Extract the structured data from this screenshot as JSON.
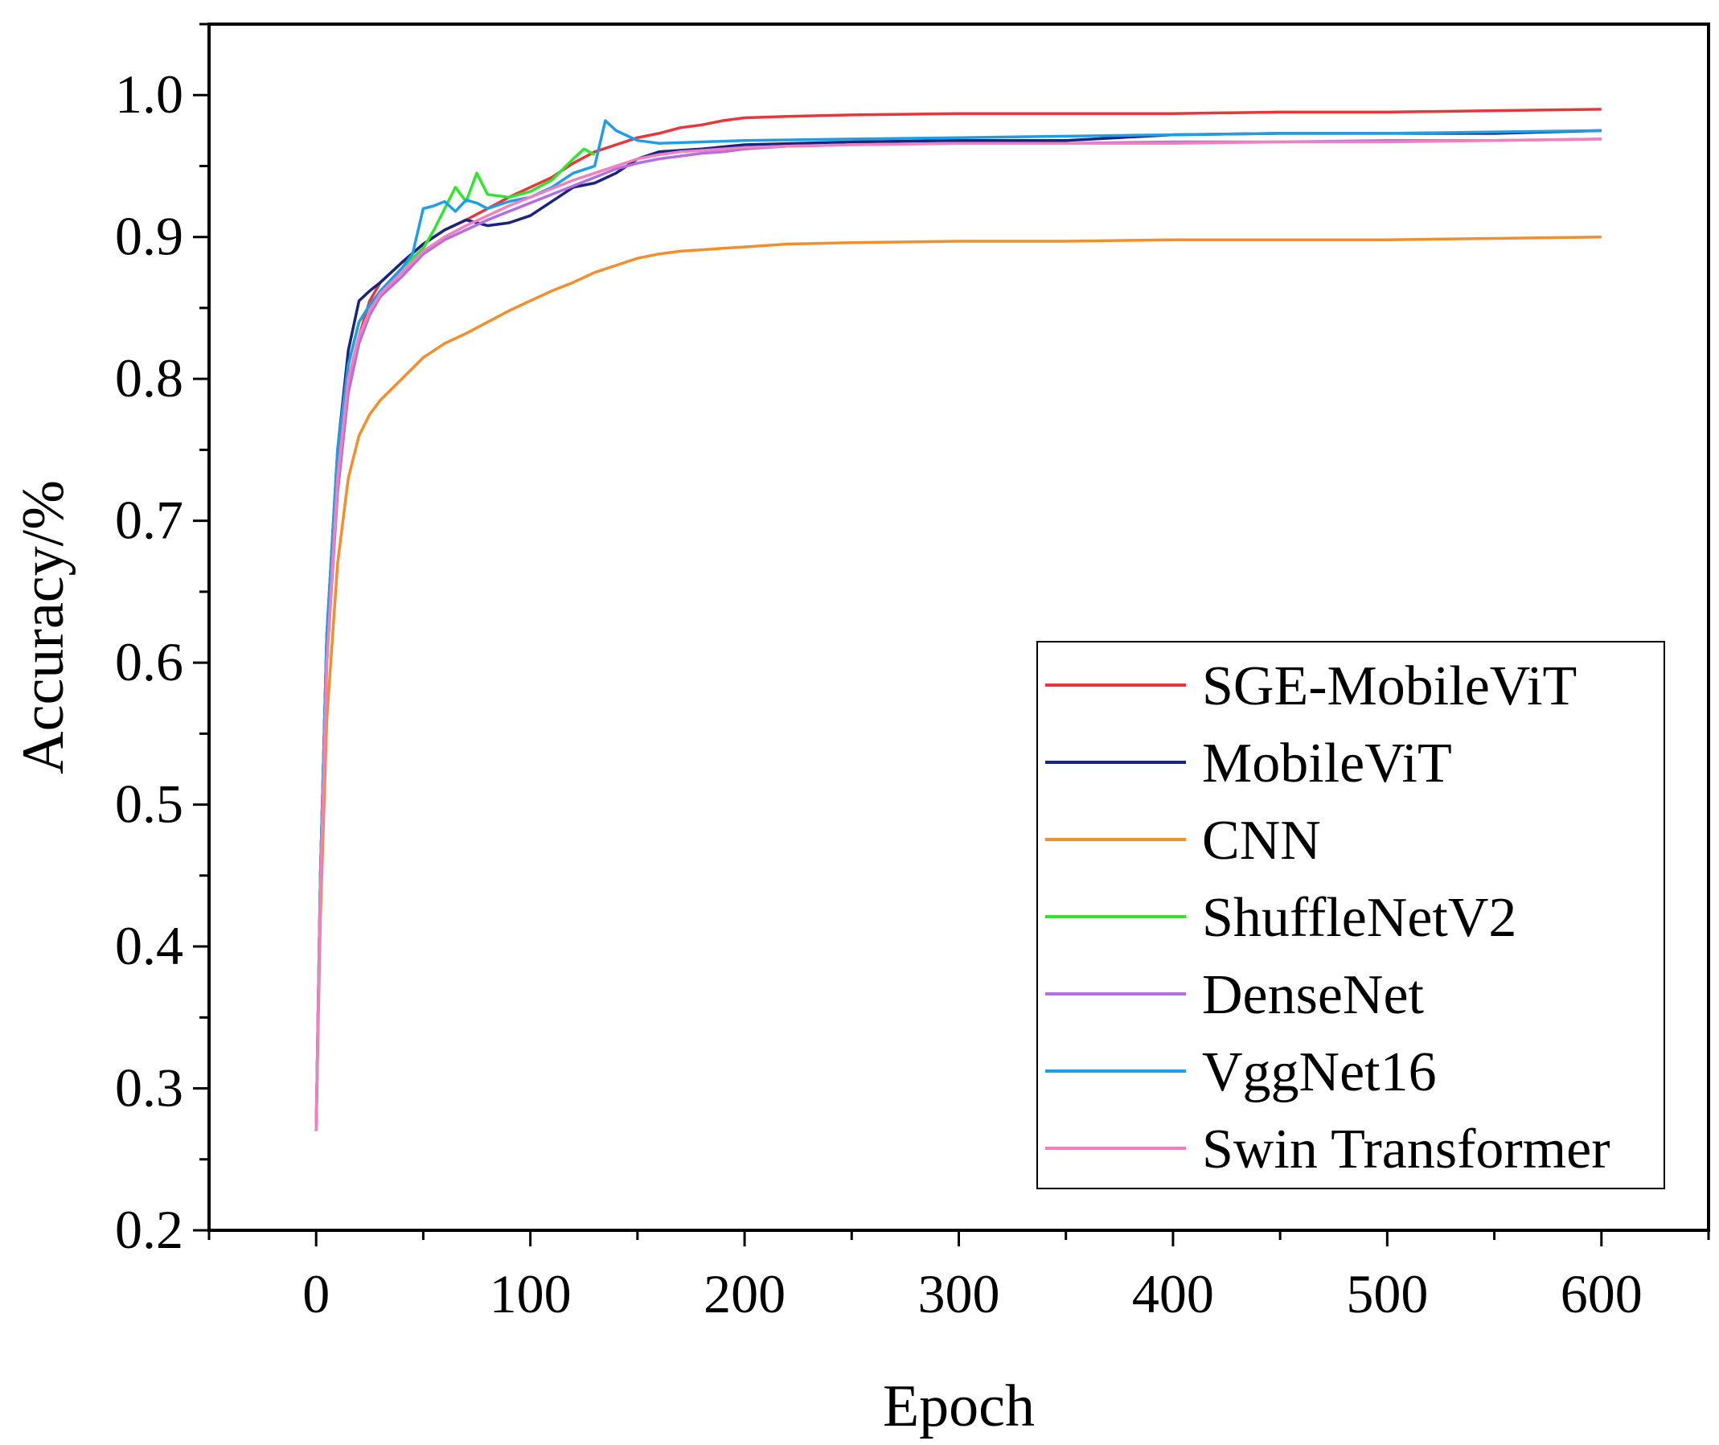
{
  "chart_data": {
    "type": "line",
    "title": "",
    "xlabel": "Epoch",
    "ylabel": "Accuracy/%",
    "xlim": [
      -50,
      650
    ],
    "ylim": [
      0.2,
      1.05
    ],
    "xticks": [
      0,
      100,
      200,
      300,
      400,
      500,
      600
    ],
    "xtick_labels": [
      "0",
      "100",
      "200",
      "300",
      "400",
      "500",
      "600"
    ],
    "yticks": [
      0.2,
      0.3,
      0.4,
      0.5,
      0.6,
      0.7,
      0.8,
      0.9,
      1.0
    ],
    "ytick_labels": [
      "0.2",
      "0.3",
      "0.4",
      "0.5",
      "0.6",
      "0.7",
      "0.8",
      "0.9",
      "1.0"
    ],
    "grid": false,
    "legend_position": "lower-right",
    "series": [
      {
        "name": "SGE-MobileViT",
        "color": "#e8363a",
        "x": [
          0,
          2,
          5,
          10,
          15,
          20,
          25,
          30,
          40,
          50,
          60,
          70,
          80,
          90,
          100,
          110,
          120,
          130,
          140,
          150,
          160,
          170,
          180,
          190,
          200,
          220,
          250,
          300,
          350,
          400,
          450,
          500,
          550,
          600
        ],
        "y": [
          0.27,
          0.45,
          0.62,
          0.74,
          0.8,
          0.83,
          0.855,
          0.868,
          0.882,
          0.895,
          0.905,
          0.912,
          0.92,
          0.928,
          0.935,
          0.942,
          0.952,
          0.96,
          0.965,
          0.97,
          0.973,
          0.977,
          0.979,
          0.982,
          0.984,
          0.985,
          0.986,
          0.987,
          0.987,
          0.987,
          0.988,
          0.988,
          0.989,
          0.99
        ]
      },
      {
        "name": "MobileViT",
        "color": "#1a237e",
        "x": [
          0,
          2,
          5,
          10,
          15,
          20,
          25,
          30,
          40,
          50,
          60,
          70,
          80,
          90,
          100,
          110,
          120,
          130,
          140,
          150,
          160,
          180,
          200,
          250,
          300,
          350,
          400,
          450,
          500,
          550,
          600
        ],
        "y": [
          0.27,
          0.45,
          0.62,
          0.75,
          0.82,
          0.855,
          0.862,
          0.868,
          0.882,
          0.895,
          0.905,
          0.912,
          0.908,
          0.91,
          0.915,
          0.925,
          0.935,
          0.938,
          0.945,
          0.955,
          0.96,
          0.962,
          0.965,
          0.967,
          0.968,
          0.968,
          0.972,
          0.973,
          0.973,
          0.973,
          0.975
        ]
      },
      {
        "name": "CNN",
        "color": "#f28e2b",
        "x": [
          0,
          2,
          5,
          10,
          15,
          20,
          25,
          30,
          40,
          50,
          60,
          70,
          80,
          90,
          100,
          110,
          120,
          130,
          140,
          150,
          160,
          170,
          180,
          190,
          200,
          220,
          250,
          300,
          350,
          400,
          450,
          500,
          550,
          600
        ],
        "y": [
          0.27,
          0.42,
          0.56,
          0.67,
          0.73,
          0.76,
          0.775,
          0.785,
          0.8,
          0.815,
          0.825,
          0.832,
          0.84,
          0.848,
          0.855,
          0.862,
          0.868,
          0.875,
          0.88,
          0.885,
          0.888,
          0.89,
          0.891,
          0.892,
          0.893,
          0.895,
          0.896,
          0.897,
          0.897,
          0.898,
          0.898,
          0.898,
          0.899,
          0.9
        ]
      },
      {
        "name": "ShuffleNetV2",
        "color": "#2ee62e",
        "x": [
          0,
          2,
          5,
          10,
          15,
          20,
          25,
          30,
          40,
          50,
          55,
          60,
          65,
          70,
          75,
          80,
          90,
          100,
          110,
          120,
          125,
          130
        ],
        "y": [
          0.27,
          0.45,
          0.62,
          0.75,
          0.81,
          0.84,
          0.852,
          0.862,
          0.878,
          0.892,
          0.905,
          0.92,
          0.935,
          0.925,
          0.945,
          0.93,
          0.928,
          0.932,
          0.94,
          0.955,
          0.962,
          0.958
        ]
      },
      {
        "name": "DenseNet",
        "color": "#b36ee0",
        "x": [
          0,
          2,
          5,
          10,
          15,
          20,
          25,
          30,
          40,
          50,
          60,
          70,
          80,
          90,
          100,
          110,
          120,
          130,
          140,
          150,
          160,
          170,
          180,
          190,
          200,
          220,
          250,
          300,
          350,
          400,
          450,
          500,
          550,
          600
        ],
        "y": [
          0.27,
          0.44,
          0.6,
          0.72,
          0.79,
          0.825,
          0.845,
          0.858,
          0.872,
          0.888,
          0.898,
          0.905,
          0.912,
          0.918,
          0.924,
          0.93,
          0.936,
          0.942,
          0.948,
          0.952,
          0.955,
          0.957,
          0.959,
          0.96,
          0.962,
          0.964,
          0.965,
          0.966,
          0.966,
          0.967,
          0.967,
          0.968,
          0.968,
          0.969
        ]
      },
      {
        "name": "VggNet16",
        "color": "#1e9ee8",
        "x": [
          0,
          2,
          5,
          10,
          15,
          20,
          25,
          30,
          40,
          45,
          50,
          55,
          60,
          65,
          70,
          75,
          80,
          90,
          100,
          110,
          120,
          130,
          135,
          140,
          150,
          160,
          180,
          200,
          250,
          300,
          350,
          400,
          450,
          500,
          550,
          600
        ],
        "y": [
          0.27,
          0.45,
          0.62,
          0.75,
          0.81,
          0.84,
          0.852,
          0.862,
          0.878,
          0.888,
          0.92,
          0.922,
          0.925,
          0.918,
          0.926,
          0.924,
          0.92,
          0.925,
          0.928,
          0.935,
          0.945,
          0.95,
          0.982,
          0.975,
          0.968,
          0.966,
          0.967,
          0.968,
          0.969,
          0.97,
          0.971,
          0.972,
          0.973,
          0.973,
          0.974,
          0.975
        ]
      },
      {
        "name": "Swin Transformer",
        "color": "#f37fbf",
        "x": [
          0,
          2,
          5,
          10,
          15,
          20,
          25,
          30,
          40,
          50,
          60,
          70,
          80,
          90,
          100,
          110,
          120,
          130,
          140,
          150,
          160,
          170,
          180,
          190,
          200,
          220,
          250,
          300,
          350,
          400,
          450,
          500,
          550,
          600
        ],
        "y": [
          0.27,
          0.44,
          0.6,
          0.73,
          0.8,
          0.83,
          0.848,
          0.86,
          0.875,
          0.89,
          0.9,
          0.908,
          0.915,
          0.922,
          0.928,
          0.934,
          0.94,
          0.945,
          0.95,
          0.955,
          0.958,
          0.96,
          0.961,
          0.962,
          0.963,
          0.964,
          0.965,
          0.966,
          0.966,
          0.966,
          0.967,
          0.967,
          0.968,
          0.969
        ]
      }
    ]
  }
}
